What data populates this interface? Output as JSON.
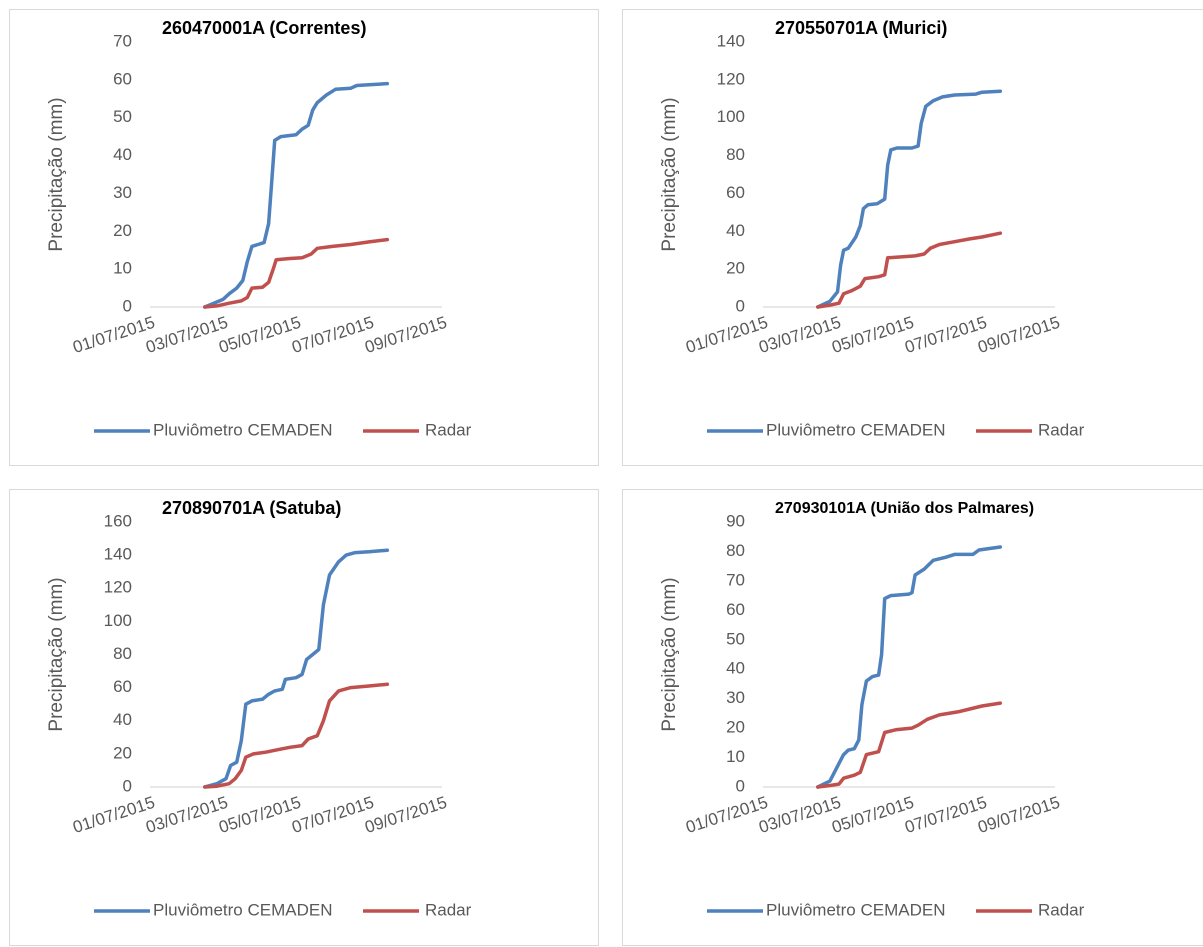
{
  "chart_data": [
    {
      "type": "line",
      "title": "260470001A (Correntes)",
      "ylabel": "Precipitação (mm)",
      "ylim": [
        0,
        70
      ],
      "yticks": [
        0,
        10,
        20,
        30,
        40,
        50,
        60,
        70
      ],
      "xlim": [
        "2015-07-01",
        "2015-07-09"
      ],
      "xticks": [
        "01/07/2015",
        "03/07/2015",
        "05/07/2015",
        "07/07/2015",
        "09/07/2015"
      ],
      "legend": "bottom",
      "series": [
        {
          "name": "Pluviômetro CEMADEN",
          "color": "#4f81bd",
          "points": [
            [
              "2015-07-02 12:00",
              0
            ],
            [
              "2015-07-02 18:00",
              1
            ],
            [
              "2015-07-03 00:00",
              2
            ],
            [
              "2015-07-03 04:00",
              3.5
            ],
            [
              "2015-07-03 09:00",
              5
            ],
            [
              "2015-07-03 13:00",
              7
            ],
            [
              "2015-07-03 16:00",
              12
            ],
            [
              "2015-07-03 19:00",
              16
            ],
            [
              "2015-07-03 23:00",
              16.5
            ],
            [
              "2015-07-04 03:00",
              17
            ],
            [
              "2015-07-04 06:00",
              22
            ],
            [
              "2015-07-04 08:00",
              33
            ],
            [
              "2015-07-04 10:00",
              44
            ],
            [
              "2015-07-04 14:00",
              45
            ],
            [
              "2015-07-05 00:00",
              45.5
            ],
            [
              "2015-07-05 04:00",
              47
            ],
            [
              "2015-07-05 08:00",
              48
            ],
            [
              "2015-07-05 11:00",
              52
            ],
            [
              "2015-07-05 14:00",
              54
            ],
            [
              "2015-07-05 20:00",
              56
            ],
            [
              "2015-07-06 02:00",
              57.5
            ],
            [
              "2015-07-06 12:00",
              57.8
            ],
            [
              "2015-07-06 16:00",
              58.5
            ],
            [
              "2015-07-07 00:00",
              58.7
            ],
            [
              "2015-07-07 12:00",
              59
            ]
          ]
        },
        {
          "name": "Radar",
          "color": "#c0504d",
          "points": [
            [
              "2015-07-02 12:00",
              0
            ],
            [
              "2015-07-02 20:00",
              0.3
            ],
            [
              "2015-07-03 04:00",
              1
            ],
            [
              "2015-07-03 12:00",
              1.6
            ],
            [
              "2015-07-03 16:00",
              2.5
            ],
            [
              "2015-07-03 19:00",
              5
            ],
            [
              "2015-07-04 02:00",
              5.2
            ],
            [
              "2015-07-04 06:00",
              6.5
            ],
            [
              "2015-07-04 09:00",
              10
            ],
            [
              "2015-07-04 11:00",
              12.5
            ],
            [
              "2015-07-04 20:00",
              12.8
            ],
            [
              "2015-07-05 04:00",
              13
            ],
            [
              "2015-07-05 10:00",
              14
            ],
            [
              "2015-07-05 14:00",
              15.5
            ],
            [
              "2015-07-06 00:00",
              16
            ],
            [
              "2015-07-06 12:00",
              16.5
            ],
            [
              "2015-07-07 00:00",
              17.2
            ],
            [
              "2015-07-07 12:00",
              17.8
            ]
          ]
        }
      ]
    },
    {
      "type": "line",
      "title": "270550701A (Murici)",
      "ylabel": "Precipitação (mm)",
      "ylim": [
        0,
        140
      ],
      "yticks": [
        0,
        20,
        40,
        60,
        80,
        100,
        120,
        140
      ],
      "xlim": [
        "2015-07-01",
        "2015-07-09"
      ],
      "xticks": [
        "01/07/2015",
        "03/07/2015",
        "05/07/2015",
        "07/07/2015",
        "09/07/2015"
      ],
      "legend": "bottom",
      "series": [
        {
          "name": "Pluviômetro CEMADEN",
          "color": "#4f81bd",
          "points": [
            [
              "2015-07-02 12:00",
              0
            ],
            [
              "2015-07-02 20:00",
              3
            ],
            [
              "2015-07-03 01:00",
              8
            ],
            [
              "2015-07-03 03:00",
              22
            ],
            [
              "2015-07-03 05:00",
              30
            ],
            [
              "2015-07-03 08:00",
              31
            ],
            [
              "2015-07-03 13:00",
              37
            ],
            [
              "2015-07-03 16:00",
              43
            ],
            [
              "2015-07-03 18:00",
              52
            ],
            [
              "2015-07-03 21:00",
              54
            ],
            [
              "2015-07-04 03:00",
              54.5
            ],
            [
              "2015-07-04 06:00",
              56
            ],
            [
              "2015-07-04 08:00",
              57
            ],
            [
              "2015-07-04 10:00",
              75
            ],
            [
              "2015-07-04 12:00",
              83
            ],
            [
              "2015-07-04 16:00",
              84
            ],
            [
              "2015-07-05 02:00",
              84
            ],
            [
              "2015-07-05 06:00",
              85
            ],
            [
              "2015-07-05 08:00",
              97
            ],
            [
              "2015-07-05 11:00",
              106
            ],
            [
              "2015-07-05 16:00",
              109
            ],
            [
              "2015-07-05 22:00",
              111
            ],
            [
              "2015-07-06 06:00",
              112
            ],
            [
              "2015-07-06 20:00",
              112.5
            ],
            [
              "2015-07-07 00:00",
              113.5
            ],
            [
              "2015-07-07 12:00",
              114
            ]
          ]
        },
        {
          "name": "Radar",
          "color": "#c0504d",
          "points": [
            [
              "2015-07-02 12:00",
              0
            ],
            [
              "2015-07-02 20:00",
              1
            ],
            [
              "2015-07-03 02:00",
              2
            ],
            [
              "2015-07-03 05:00",
              7
            ],
            [
              "2015-07-03 10:00",
              8.5
            ],
            [
              "2015-07-03 16:00",
              11
            ],
            [
              "2015-07-03 19:00",
              15
            ],
            [
              "2015-07-04 04:00",
              16
            ],
            [
              "2015-07-04 08:00",
              17
            ],
            [
              "2015-07-04 10:00",
              26
            ],
            [
              "2015-07-04 20:00",
              26.5
            ],
            [
              "2015-07-05 04:00",
              27
            ],
            [
              "2015-07-05 10:00",
              28
            ],
            [
              "2015-07-05 14:00",
              31
            ],
            [
              "2015-07-05 20:00",
              33
            ],
            [
              "2015-07-06 06:00",
              34.5
            ],
            [
              "2015-07-06 16:00",
              36
            ],
            [
              "2015-07-07 00:00",
              37
            ],
            [
              "2015-07-07 12:00",
              39
            ]
          ]
        }
      ]
    },
    {
      "type": "line",
      "title": "270890701A (Satuba)",
      "ylabel": "Precipitação (mm)",
      "ylim": [
        0,
        160
      ],
      "yticks": [
        0,
        20,
        40,
        60,
        80,
        100,
        120,
        140,
        160
      ],
      "xlim": [
        "2015-07-01",
        "2015-07-09"
      ],
      "xticks": [
        "01/07/2015",
        "03/07/2015",
        "05/07/2015",
        "07/07/2015",
        "09/07/2015"
      ],
      "legend": "bottom",
      "series": [
        {
          "name": "Pluviômetro CEMADEN",
          "color": "#4f81bd",
          "points": [
            [
              "2015-07-02 12:00",
              0
            ],
            [
              "2015-07-02 20:00",
              2
            ],
            [
              "2015-07-03 02:00",
              5
            ],
            [
              "2015-07-03 05:00",
              13
            ],
            [
              "2015-07-03 09:00",
              15
            ],
            [
              "2015-07-03 12:00",
              28
            ],
            [
              "2015-07-03 15:00",
              50
            ],
            [
              "2015-07-03 19:00",
              52
            ],
            [
              "2015-07-04 02:00",
              53
            ],
            [
              "2015-07-04 06:00",
              56
            ],
            [
              "2015-07-04 10:00",
              58
            ],
            [
              "2015-07-04 15:00",
              59
            ],
            [
              "2015-07-04 17:00",
              65
            ],
            [
              "2015-07-05 00:00",
              66
            ],
            [
              "2015-07-05 04:00",
              68
            ],
            [
              "2015-07-05 07:00",
              77
            ],
            [
              "2015-07-05 11:00",
              80
            ],
            [
              "2015-07-05 15:00",
              83
            ],
            [
              "2015-07-05 18:00",
              110
            ],
            [
              "2015-07-05 22:00",
              128
            ],
            [
              "2015-07-06 04:00",
              136
            ],
            [
              "2015-07-06 09:00",
              140
            ],
            [
              "2015-07-06 15:00",
              141.5
            ],
            [
              "2015-07-07 00:00",
              142
            ],
            [
              "2015-07-07 12:00",
              143
            ]
          ]
        },
        {
          "name": "Radar",
          "color": "#c0504d",
          "points": [
            [
              "2015-07-02 12:00",
              0
            ],
            [
              "2015-07-02 20:00",
              0.5
            ],
            [
              "2015-07-03 04:00",
              2
            ],
            [
              "2015-07-03 08:00",
              5
            ],
            [
              "2015-07-03 12:00",
              10
            ],
            [
              "2015-07-03 15:00",
              18
            ],
            [
              "2015-07-03 20:00",
              20
            ],
            [
              "2015-07-04 04:00",
              21
            ],
            [
              "2015-07-04 12:00",
              22.5
            ],
            [
              "2015-07-04 20:00",
              24
            ],
            [
              "2015-07-05 04:00",
              25
            ],
            [
              "2015-07-05 08:00",
              29
            ],
            [
              "2015-07-05 14:00",
              31
            ],
            [
              "2015-07-05 18:00",
              40
            ],
            [
              "2015-07-05 22:00",
              52
            ],
            [
              "2015-07-06 04:00",
              58
            ],
            [
              "2015-07-06 12:00",
              60
            ],
            [
              "2015-07-07 00:00",
              61
            ],
            [
              "2015-07-07 12:00",
              62
            ]
          ]
        }
      ]
    },
    {
      "type": "line",
      "title": "270930101A (União dos Palmares)",
      "ylabel": "Precipitação (mm)",
      "ylim": [
        0,
        90
      ],
      "yticks": [
        0,
        10,
        20,
        30,
        40,
        50,
        60,
        70,
        80,
        90
      ],
      "xlim": [
        "2015-07-01",
        "2015-07-09"
      ],
      "xticks": [
        "01/07/2015",
        "03/07/2015",
        "05/07/2015",
        "07/07/2015",
        "09/07/2015"
      ],
      "legend": "bottom",
      "series": [
        {
          "name": "Pluviômetro CEMADEN",
          "color": "#4f81bd",
          "points": [
            [
              "2015-07-02 12:00",
              0
            ],
            [
              "2015-07-02 20:00",
              2
            ],
            [
              "2015-07-03 02:00",
              8
            ],
            [
              "2015-07-03 05:00",
              11
            ],
            [
              "2015-07-03 08:00",
              12.5
            ],
            [
              "2015-07-03 12:00",
              13
            ],
            [
              "2015-07-03 15:00",
              16
            ],
            [
              "2015-07-03 17:00",
              28
            ],
            [
              "2015-07-03 20:00",
              36
            ],
            [
              "2015-07-04 00:00",
              37.5
            ],
            [
              "2015-07-04 04:00",
              38
            ],
            [
              "2015-07-04 06:00",
              45
            ],
            [
              "2015-07-04 08:00",
              64
            ],
            [
              "2015-07-04 12:00",
              65
            ],
            [
              "2015-07-05 00:00",
              65.5
            ],
            [
              "2015-07-05 02:00",
              66
            ],
            [
              "2015-07-05 04:00",
              72
            ],
            [
              "2015-07-05 10:00",
              74
            ],
            [
              "2015-07-05 16:00",
              77
            ],
            [
              "2015-07-06 00:00",
              78
            ],
            [
              "2015-07-06 06:00",
              79
            ],
            [
              "2015-07-06 18:00",
              79
            ],
            [
              "2015-07-06 22:00",
              80.5
            ],
            [
              "2015-07-07 12:00",
              81.5
            ]
          ]
        },
        {
          "name": "Radar",
          "color": "#c0504d",
          "points": [
            [
              "2015-07-02 12:00",
              0
            ],
            [
              "2015-07-02 20:00",
              0.5
            ],
            [
              "2015-07-03 02:00",
              1
            ],
            [
              "2015-07-03 05:00",
              3
            ],
            [
              "2015-07-03 12:00",
              4
            ],
            [
              "2015-07-03 16:00",
              5
            ],
            [
              "2015-07-03 20:00",
              11
            ],
            [
              "2015-07-04 04:00",
              12
            ],
            [
              "2015-07-04 08:00",
              18.5
            ],
            [
              "2015-07-04 16:00",
              19.5
            ],
            [
              "2015-07-05 02:00",
              20
            ],
            [
              "2015-07-05 06:00",
              21
            ],
            [
              "2015-07-05 12:00",
              23
            ],
            [
              "2015-07-05 20:00",
              24.5
            ],
            [
              "2015-07-06 08:00",
              25.5
            ],
            [
              "2015-07-06 16:00",
              26.5
            ],
            [
              "2015-07-07 00:00",
              27.5
            ],
            [
              "2015-07-07 12:00",
              28.5
            ]
          ]
        }
      ]
    }
  ]
}
